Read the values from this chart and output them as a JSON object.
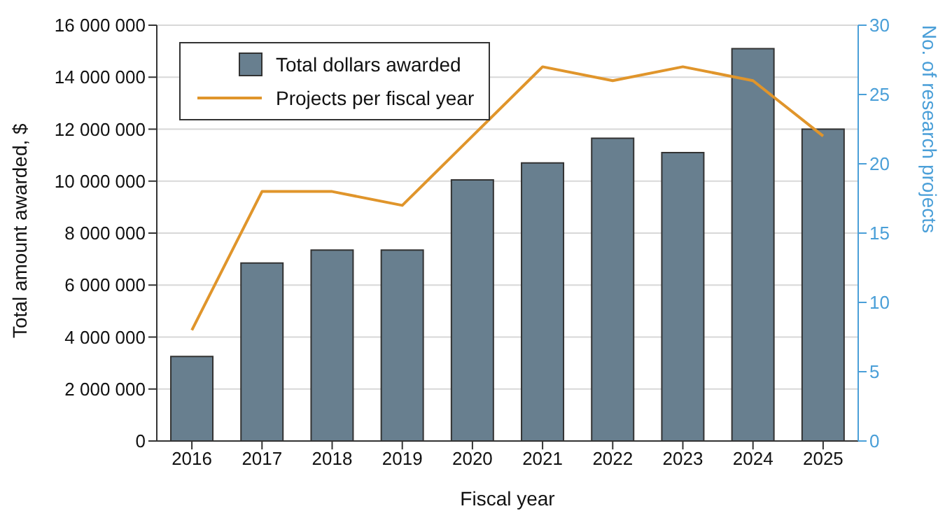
{
  "chart_data": {
    "type": "bar",
    "xlabel": "Fiscal year",
    "ylabel": "Total amount awarded, $",
    "y2label": "No. of research projects",
    "categories": [
      "2016",
      "2017",
      "2018",
      "2019",
      "2020",
      "2021",
      "2022",
      "2023",
      "2024",
      "2025"
    ],
    "series": [
      {
        "name": "Total dollars awarded",
        "color": "#687f8f",
        "values": [
          3250000,
          6850000,
          7350000,
          7350000,
          10050000,
          10700000,
          11650000,
          11100000,
          15100000,
          12000000
        ]
      },
      {
        "name": "Projects per fiscal year",
        "type": "line",
        "color": "#e0952b",
        "axis": "y2",
        "values": [
          8,
          18,
          18,
          17,
          22,
          27,
          26,
          27,
          26,
          22
        ]
      }
    ],
    "ylim": [
      0,
      16000000
    ],
    "yticks": [
      0,
      {
        "value": 2000000,
        "label": "2 000 000"
      },
      {
        "value": 4000000,
        "label": "4 000 000"
      },
      {
        "value": 6000000,
        "label": "6 000 000"
      },
      {
        "value": 8000000,
        "label": "8 000 000"
      },
      {
        "value": 10000000,
        "label": "10 000 000"
      },
      {
        "value": 12000000,
        "label": "12 000 000"
      },
      {
        "value": 14000000,
        "label": "14 000 000"
      },
      {
        "value": 16000000,
        "label": "16 000 000"
      }
    ],
    "y2lim": [
      0,
      30
    ],
    "y2ticks": [
      0,
      5,
      10,
      15,
      20,
      25,
      30
    ],
    "grid": "y",
    "legend": "top left",
    "marker": "none"
  }
}
